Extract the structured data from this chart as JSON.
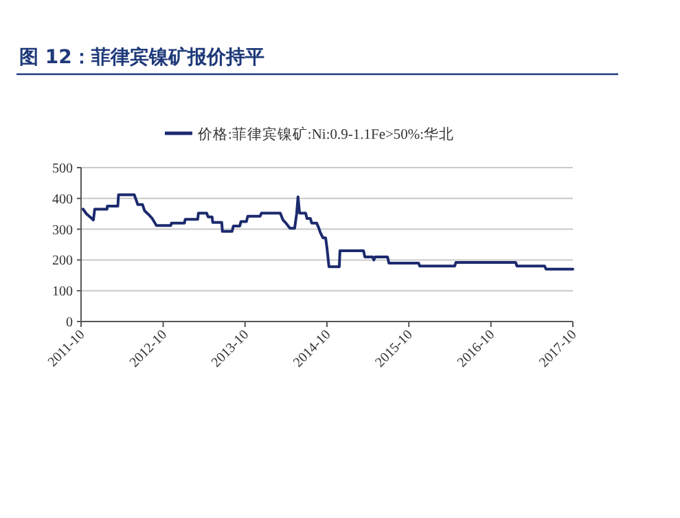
{
  "chart_data": {
    "type": "line",
    "title": "图 12：菲律宾镍矿报价持平",
    "legend": "top",
    "grid": "y",
    "line_style": "solid",
    "xlim": [
      "2011-10",
      "2017-10"
    ],
    "xticks": [
      "2011-10",
      "2012-10",
      "2013-10",
      "2014-10",
      "2015-10",
      "2016-10",
      "2017-10"
    ],
    "ylim": [
      0,
      500
    ],
    "yticks": [
      0,
      100,
      200,
      300,
      400,
      500
    ],
    "series": [
      {
        "name": "价格:菲律宾镍矿:Ni:0.9-1.1Fe>50%:华北",
        "color": "#1c2a6e",
        "x": [
          "2011-10-10",
          "2011-10-25",
          "2011-11-10",
          "2011-11-25",
          "2011-12-01",
          "2012-01-25",
          "2012-01-26",
          "2012-03-13",
          "2012-03-16",
          "2012-05-25",
          "2012-06-10",
          "2012-07-01",
          "2012-07-10",
          "2012-07-25",
          "2012-08-13",
          "2012-09-01",
          "2012-11-04",
          "2012-11-07",
          "2013-01-04",
          "2013-01-07",
          "2013-03-04",
          "2013-03-07",
          "2013-04-13",
          "2013-04-19",
          "2013-05-07",
          "2013-05-10",
          "2013-06-19",
          "2013-06-22",
          "2013-08-04",
          "2013-08-10",
          "2013-09-07",
          "2013-09-13",
          "2013-10-07",
          "2013-10-13",
          "2013-12-07",
          "2013-12-13",
          "2014-03-07",
          "2014-03-19",
          "2014-04-01",
          "2014-04-19",
          "2014-05-10",
          "2014-05-19",
          "2014-05-25",
          "2014-06-01",
          "2014-06-28",
          "2014-07-04",
          "2014-07-19",
          "2014-07-25",
          "2014-08-16",
          "2014-08-25",
          "2014-09-01",
          "2014-09-13",
          "2014-09-25",
          "2014-10-01",
          "2014-10-10",
          "2014-11-25",
          "2014-11-28",
          "2015-03-13",
          "2015-03-19",
          "2015-04-22",
          "2015-04-28",
          "2015-05-04",
          "2015-06-28",
          "2015-07-04",
          "2015-11-13",
          "2015-11-19",
          "2016-04-22",
          "2016-04-28",
          "2017-01-19",
          "2017-01-25",
          "2017-05-28",
          "2017-06-04",
          "2017-10-01"
        ],
        "values": [
          365,
          350,
          340,
          330,
          365,
          365,
          375,
          375,
          412,
          412,
          380,
          380,
          360,
          350,
          335,
          312,
          312,
          320,
          320,
          332,
          332,
          352,
          352,
          340,
          340,
          322,
          322,
          293,
          293,
          310,
          310,
          325,
          325,
          342,
          342,
          352,
          352,
          330,
          320,
          303,
          303,
          350,
          405,
          352,
          352,
          335,
          335,
          320,
          320,
          305,
          290,
          272,
          272,
          240,
          178,
          178,
          230,
          230,
          210,
          210,
          200,
          210,
          210,
          190,
          190,
          180,
          180,
          192,
          192,
          180,
          180,
          170,
          170
        ]
      }
    ]
  }
}
